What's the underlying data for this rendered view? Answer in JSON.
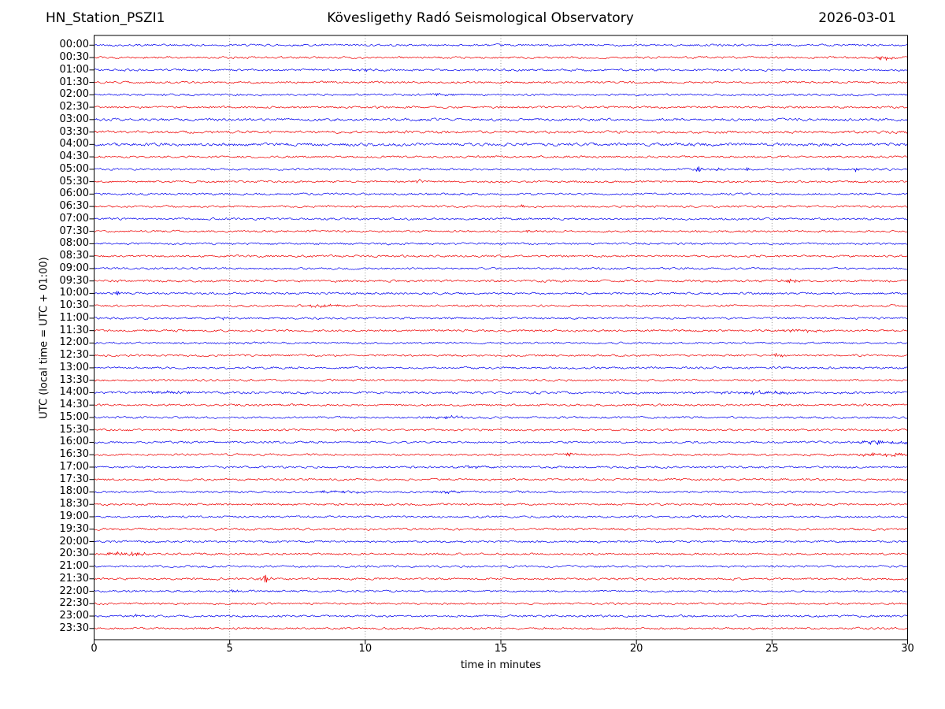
{
  "header": {
    "station": "HN_Station_PSZI1",
    "observatory": "Kövesligethy Radó Seismological Observatory",
    "date": "2026-03-01"
  },
  "chart_data": {
    "type": "line",
    "subtype": "helicorder-dayplot",
    "title": "HN_Station_PSZI1  Kövesligethy Radó Seismological Observatory  2026-03-01",
    "xlabel": "time in minutes",
    "ylabel": "UTC (local time = UTC + 01:00)",
    "x_range": [
      0,
      30
    ],
    "x_ticks": [
      0,
      5,
      10,
      15,
      20,
      25,
      30
    ],
    "grid_minutes": [
      5,
      10,
      15,
      20,
      25
    ],
    "grid_on": true,
    "minutes_per_row": 30,
    "trace_colors": {
      "blue": "#0000ee",
      "red": "#ee0000"
    },
    "axis_color": "#000000",
    "grid_color": "#8a8a8a",
    "rows": [
      {
        "time": "00:00",
        "color": "blue"
      },
      {
        "time": "00:30",
        "color": "red"
      },
      {
        "time": "01:00",
        "color": "blue"
      },
      {
        "time": "01:30",
        "color": "red"
      },
      {
        "time": "02:00",
        "color": "blue"
      },
      {
        "time": "02:30",
        "color": "red"
      },
      {
        "time": "03:00",
        "color": "blue",
        "base_amp": 1.35
      },
      {
        "time": "03:30",
        "color": "red",
        "base_amp": 1.35
      },
      {
        "time": "04:00",
        "color": "blue",
        "base_amp": 1.6
      },
      {
        "time": "04:30",
        "color": "red"
      },
      {
        "time": "05:00",
        "color": "blue"
      },
      {
        "time": "05:30",
        "color": "red"
      },
      {
        "time": "06:00",
        "color": "blue"
      },
      {
        "time": "06:30",
        "color": "red"
      },
      {
        "time": "07:00",
        "color": "blue"
      },
      {
        "time": "07:30",
        "color": "red"
      },
      {
        "time": "08:00",
        "color": "blue"
      },
      {
        "time": "08:30",
        "color": "red"
      },
      {
        "time": "09:00",
        "color": "blue"
      },
      {
        "time": "09:30",
        "color": "red",
        "base_amp": 1.25
      },
      {
        "time": "10:00",
        "color": "blue"
      },
      {
        "time": "10:30",
        "color": "red"
      },
      {
        "time": "11:00",
        "color": "blue"
      },
      {
        "time": "11:30",
        "color": "red"
      },
      {
        "time": "12:00",
        "color": "blue"
      },
      {
        "time": "12:30",
        "color": "red"
      },
      {
        "time": "13:00",
        "color": "blue"
      },
      {
        "time": "13:30",
        "color": "red"
      },
      {
        "time": "14:00",
        "color": "blue",
        "base_amp": 1.3
      },
      {
        "time": "14:30",
        "color": "red"
      },
      {
        "time": "15:00",
        "color": "blue"
      },
      {
        "time": "15:30",
        "color": "red"
      },
      {
        "time": "16:00",
        "color": "blue"
      },
      {
        "time": "16:30",
        "color": "red"
      },
      {
        "time": "17:00",
        "color": "blue"
      },
      {
        "time": "17:30",
        "color": "red"
      },
      {
        "time": "18:00",
        "color": "blue"
      },
      {
        "time": "18:30",
        "color": "red"
      },
      {
        "time": "19:00",
        "color": "blue"
      },
      {
        "time": "19:30",
        "color": "red",
        "base_amp": 1.2
      },
      {
        "time": "20:00",
        "color": "blue"
      },
      {
        "time": "20:30",
        "color": "red"
      },
      {
        "time": "21:00",
        "color": "blue"
      },
      {
        "time": "21:30",
        "color": "red"
      },
      {
        "time": "22:00",
        "color": "blue"
      },
      {
        "time": "22:30",
        "color": "red"
      },
      {
        "time": "23:00",
        "color": "blue"
      },
      {
        "time": "23:30",
        "color": "red"
      }
    ],
    "events": [
      {
        "row": "00:30",
        "minute": 29.0,
        "amp": 2.5,
        "width": 0.5
      },
      {
        "row": "01:00",
        "minute": 10.1,
        "amp": 1.8,
        "width": 0.4
      },
      {
        "row": "02:00",
        "minute": 12.8,
        "amp": 1.8,
        "width": 0.5
      },
      {
        "row": "05:00",
        "minute": 22.3,
        "amp": 4.0,
        "width": 0.12
      },
      {
        "row": "05:00",
        "minute": 23.0,
        "amp": 2.5,
        "width": 0.1
      },
      {
        "row": "05:00",
        "minute": 24.1,
        "amp": 3.0,
        "width": 0.1
      },
      {
        "row": "05:00",
        "minute": 26.4,
        "amp": 3.0,
        "width": 0.1
      },
      {
        "row": "05:00",
        "minute": 27.1,
        "amp": 3.0,
        "width": 0.1
      },
      {
        "row": "05:00",
        "minute": 28.1,
        "amp": 3.5,
        "width": 0.12
      },
      {
        "row": "05:30",
        "minute": 12.0,
        "amp": 3.5,
        "width": 0.1
      },
      {
        "row": "06:30",
        "minute": 15.8,
        "amp": 2.5,
        "width": 0.1
      },
      {
        "row": "07:30",
        "minute": 12.1,
        "amp": 2.0,
        "width": 0.1
      },
      {
        "row": "07:30",
        "minute": 15.9,
        "amp": 2.5,
        "width": 0.1
      },
      {
        "row": "09:30",
        "minute": 25.6,
        "amp": 1.8,
        "width": 0.4
      },
      {
        "row": "10:00",
        "minute": 0.8,
        "amp": 3.5,
        "width": 0.15
      },
      {
        "row": "10:30",
        "minute": 8.3,
        "amp": 2.0,
        "width": 0.7
      },
      {
        "row": "11:00",
        "minute": 4.8,
        "amp": 1.8,
        "width": 0.15
      },
      {
        "row": "11:30",
        "minute": 26.0,
        "amp": 2.2,
        "width": 0.7
      },
      {
        "row": "12:30",
        "minute": 25.2,
        "amp": 2.5,
        "width": 0.25
      },
      {
        "row": "14:00",
        "minute": 2.5,
        "amp": 1.6,
        "width": 1.5
      },
      {
        "row": "14:00",
        "minute": 24.5,
        "amp": 1.6,
        "width": 1.5
      },
      {
        "row": "15:00",
        "minute": 13.0,
        "amp": 1.5,
        "width": 0.8
      },
      {
        "row": "16:00",
        "minute": 29.2,
        "amp": 2.2,
        "width": 1.2
      },
      {
        "row": "16:30",
        "minute": 17.5,
        "amp": 3.0,
        "width": 0.12
      },
      {
        "row": "16:30",
        "minute": 29.0,
        "amp": 2.2,
        "width": 1.2
      },
      {
        "row": "17:00",
        "minute": 13.9,
        "amp": 2.2,
        "width": 0.5
      },
      {
        "row": "18:00",
        "minute": 9.0,
        "amp": 1.8,
        "width": 1.0
      },
      {
        "row": "18:00",
        "minute": 13.0,
        "amp": 1.8,
        "width": 0.6
      },
      {
        "row": "20:30",
        "minute": 1.1,
        "amp": 2.8,
        "width": 0.8
      },
      {
        "row": "21:30",
        "minute": 6.3,
        "amp": 6.0,
        "width": 0.18
      },
      {
        "row": "22:00",
        "minute": 5.0,
        "amp": 1.8,
        "width": 0.3
      },
      {
        "row": "23:00",
        "minute": 1.5,
        "amp": 1.8,
        "width": 0.4
      }
    ]
  }
}
